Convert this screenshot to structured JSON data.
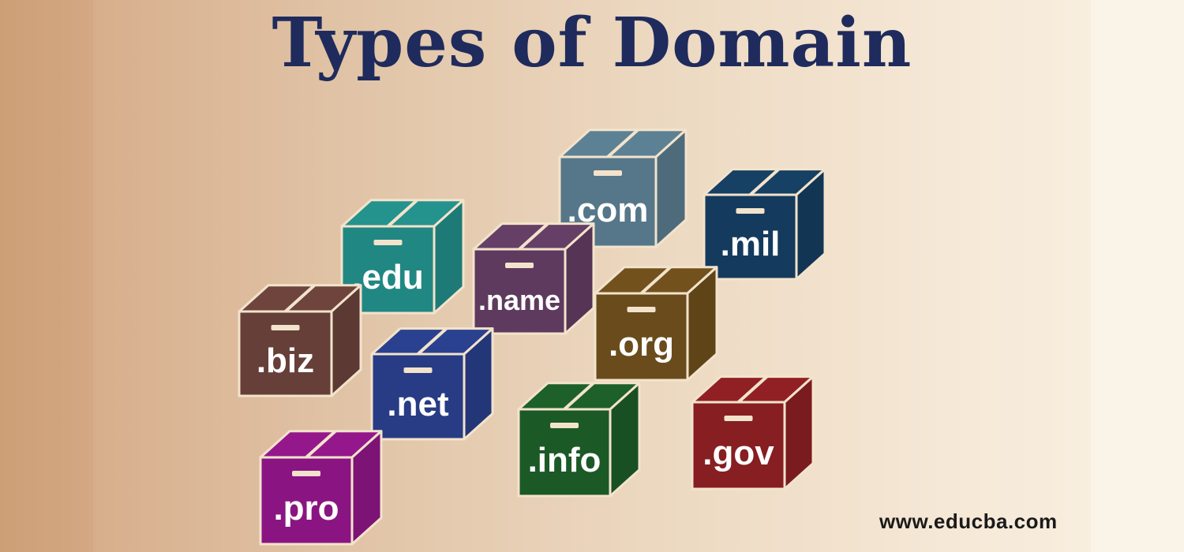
{
  "title": "Types of Domain",
  "footer": {
    "url": "www.educba.com"
  },
  "boxes": [
    {
      "id": "biz",
      "label": ".biz",
      "color": "#663f38"
    },
    {
      "id": "edu",
      "label": ".edu",
      "color": "#218783"
    },
    {
      "id": "name",
      "label": ".name",
      "color": "#5e3a5e"
    },
    {
      "id": "com",
      "label": ".com",
      "color": "#567789"
    },
    {
      "id": "mil",
      "label": ".mil",
      "color": "#143b5d"
    },
    {
      "id": "org",
      "label": ".org",
      "color": "#6a4b1b"
    },
    {
      "id": "net",
      "label": ".net",
      "color": "#273c84"
    },
    {
      "id": "info",
      "label": ".info",
      "color": "#1b5927"
    },
    {
      "id": "gov",
      "label": ".gov",
      "color": "#861e22"
    },
    {
      "id": "pro",
      "label": ".pro",
      "color": "#8a1582"
    }
  ],
  "colors": {
    "title": "#1f2b5c",
    "box_edge": "#f3e3cc",
    "label": "#ffffff"
  }
}
